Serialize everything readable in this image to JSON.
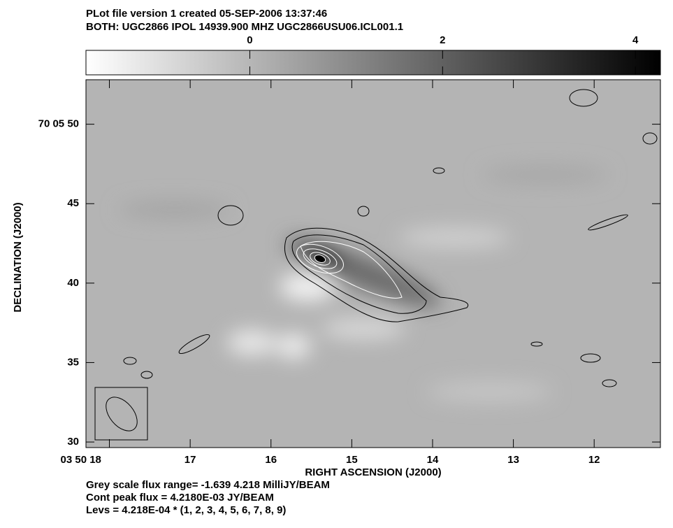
{
  "chart_data": {
    "type": "image",
    "title": "PLot file version 1  created 05-SEP-2006 13:37:46",
    "subtitle": "BOTH: UGC2866  IPOL  14939.900 MHZ  UGC2866USU06.ICL001.1",
    "x_label": "RIGHT ASCENSION (J2000)",
    "y_label": "DECLINATION (J2000)",
    "xlim": [
      18.29,
      11.18
    ],
    "xticks": [
      {
        "value": 18,
        "label": "03 50 18"
      },
      17,
      16,
      15,
      14,
      13,
      12
    ],
    "ylim": [
      29.65,
      52.8
    ],
    "yticks": [
      {
        "value": 50,
        "label": "70 05 50"
      },
      45,
      40,
      35,
      30
    ],
    "clim": [
      -1.7,
      4.26
    ],
    "cticks": [
      0,
      2,
      4
    ],
    "notes": [
      "Grey scale flux range= -1.639 4.218 MilliJY/BEAM",
      "Cont peak flux =  4.2180E-03 JY/BEAM",
      "Levs = 4.218E-04 * (1, 2, 3, 4, 5, 6, 7, 8, 9)"
    ]
  }
}
